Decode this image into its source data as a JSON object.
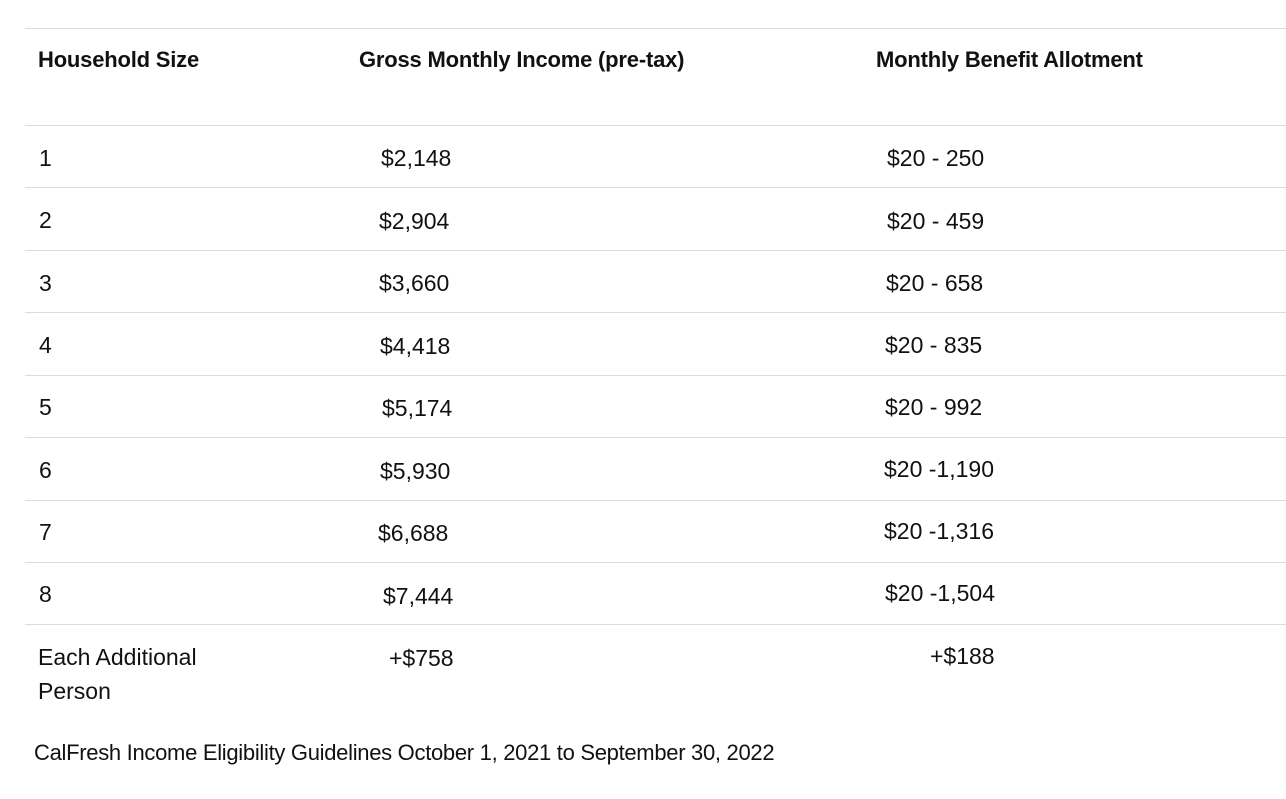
{
  "table": {
    "headers": [
      "Household Size",
      "Gross Monthly Income (pre-tax)",
      "Monthly Benefit Allotment"
    ],
    "rows": [
      {
        "size": "1",
        "income": "$2,148",
        "benefit": "$20 - 250"
      },
      {
        "size": "2",
        "income": "$2,904",
        "benefit": "$20 - 459"
      },
      {
        "size": "3",
        "income": "$3,660",
        "benefit": "$20 - 658"
      },
      {
        "size": "4",
        "income": "$4,418",
        "benefit": "$20 - 835"
      },
      {
        "size": "5",
        "income": "$5,174",
        "benefit": "$20 - 992"
      },
      {
        "size": "6",
        "income": "$5,930",
        "benefit": "$20 -1,190"
      },
      {
        "size": "7",
        "income": "$6,688",
        "benefit": "$20 -1,316"
      },
      {
        "size": "8",
        "income": "$7,444",
        "benefit": "$20 -1,504"
      }
    ],
    "additional": {
      "size_line1": "Each Additional",
      "size_line2": "Person",
      "income": "+$758",
      "benefit": "+$188"
    }
  },
  "caption": "CalFresh Income Eligibility Guidelines October 1, 2021 to September 30, 2022"
}
